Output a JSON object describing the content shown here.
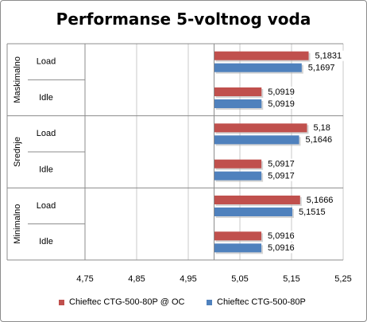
{
  "chart_data": {
    "type": "bar",
    "orientation": "horizontal",
    "title": "Performanse 5-voltnog voda",
    "groups": [
      {
        "label": "Maskimalno",
        "categories": [
          "Load",
          "Idle"
        ]
      },
      {
        "label": "Srednje",
        "categories": [
          "Load",
          "Idle"
        ]
      },
      {
        "label": "Minimalno",
        "categories": [
          "Load",
          "Idle"
        ]
      }
    ],
    "series": [
      {
        "name": "Chieftec CTG-500-80P @ OC",
        "color": "#c0504d",
        "values": [
          5.1831,
          5.0919,
          5.18,
          5.0917,
          5.1666,
          5.0916
        ],
        "labels": [
          "5,1831",
          "5,0919",
          "5,18",
          "5,0917",
          "5,1666",
          "5,0916"
        ]
      },
      {
        "name": "Chieftec CTG-500-80P",
        "color": "#4f81bd",
        "values": [
          5.1697,
          5.0919,
          5.1646,
          5.0917,
          5.1515,
          5.0916
        ],
        "labels": [
          "5,1697",
          "5,0919",
          "5,1646",
          "5,0917",
          "5,1515",
          "5,0916"
        ]
      }
    ],
    "xlim": [
      4.75,
      5.25
    ],
    "ticks": [
      4.75,
      4.85,
      4.95,
      5.05,
      5.15,
      5.25
    ],
    "tick_labels": [
      "4,75",
      "4,85",
      "4,95",
      "5,05",
      "5,15",
      "5,25"
    ],
    "base_value": 5,
    "grid": "vertical",
    "legend_position": "bottom"
  }
}
